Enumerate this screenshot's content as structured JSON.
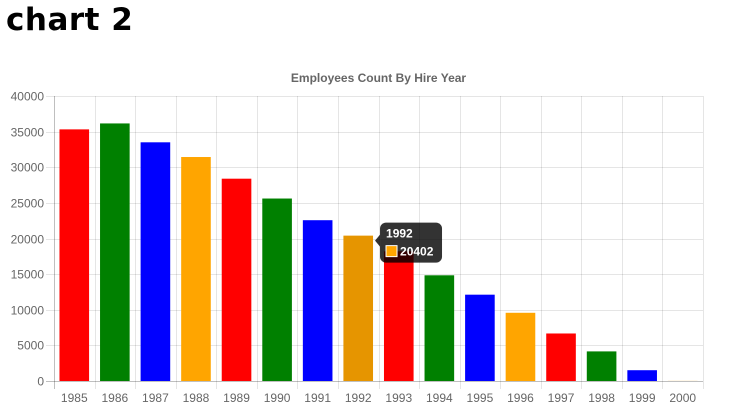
{
  "page": {
    "heading": "chart 2"
  },
  "chart_data": {
    "type": "bar",
    "title": "Employees Count By Hire Year",
    "xlabel": "",
    "ylabel": "",
    "categories": [
      "1985",
      "1986",
      "1987",
      "1988",
      "1989",
      "1990",
      "1991",
      "1992",
      "1993",
      "1994",
      "1995",
      "1996",
      "1997",
      "1998",
      "1999",
      "2000"
    ],
    "values": [
      35316,
      36150,
      33501,
      31436,
      28394,
      25610,
      22568,
      20402,
      18200,
      14835,
      12115,
      9574,
      6669,
      4155,
      1514,
      13
    ],
    "bar_colors": [
      "#ff0000",
      "#008000",
      "#0000ff",
      "#ffa500",
      "#ff0000",
      "#008000",
      "#0000ff",
      "#ffa500",
      "#ff0000",
      "#008000",
      "#0000ff",
      "#ffa500",
      "#ff0000",
      "#008000",
      "#0000ff",
      "#ffa500"
    ],
    "hover_color": "#e69500",
    "ylim": [
      0,
      40000
    ],
    "yticks": [
      0,
      5000,
      10000,
      15000,
      20000,
      25000,
      30000,
      35000,
      40000
    ],
    "grid": true,
    "legend": "none",
    "tooltip": {
      "index": 7,
      "title": "1992",
      "value": "20402"
    }
  }
}
